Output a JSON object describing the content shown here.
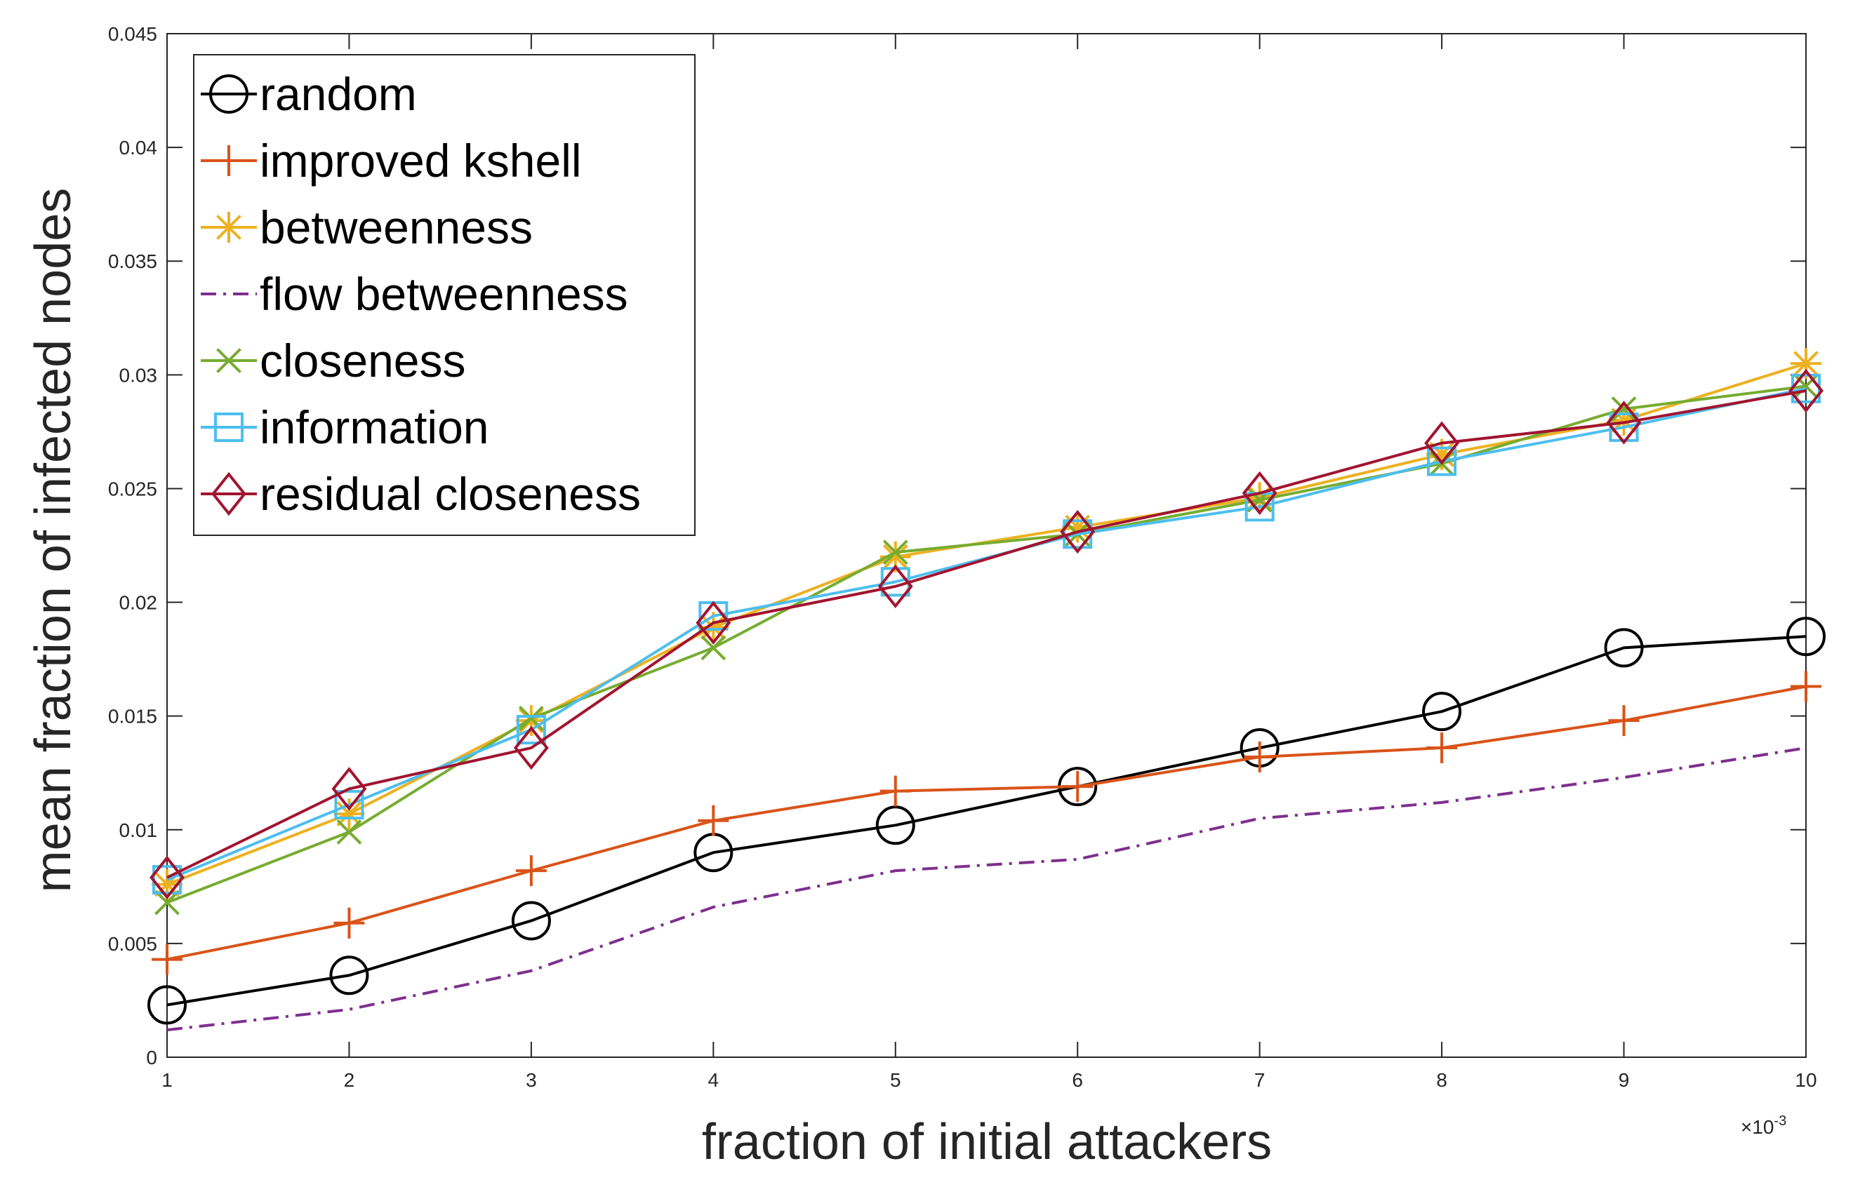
{
  "chart_data": {
    "type": "line",
    "title": "",
    "xlabel": "fraction of initial attackers",
    "ylabel": "mean fraction of infected nodes",
    "x_multiplier_label": "×10",
    "x_multiplier_exp": "-3",
    "x": [
      1,
      2,
      3,
      4,
      5,
      6,
      7,
      8,
      9,
      10
    ],
    "xlim": [
      1,
      10
    ],
    "ylim": [
      0,
      0.045
    ],
    "x_ticks": [
      "1",
      "2",
      "3",
      "4",
      "5",
      "6",
      "7",
      "8",
      "9",
      "10"
    ],
    "y_ticks": [
      "0",
      "0.005",
      "0.01",
      "0.015",
      "0.02",
      "0.025",
      "0.03",
      "0.035",
      "0.04",
      "0.045"
    ],
    "grid": false,
    "legend_position": "top-left",
    "series": [
      {
        "name": "random",
        "color": "#000000",
        "marker": "circle",
        "dash": "solid",
        "values": [
          0.0023,
          0.0036,
          0.006,
          0.009,
          0.0102,
          0.0119,
          0.0136,
          0.0152,
          0.018,
          0.0185
        ]
      },
      {
        "name": "improved kshell",
        "color": "#D95319",
        "marker": "plus",
        "dash": "solid",
        "values": [
          0.0043,
          0.0059,
          0.0082,
          0.0104,
          0.0117,
          0.0119,
          0.0132,
          0.0136,
          0.0148,
          0.0163
        ]
      },
      {
        "name": "betweenness",
        "color": "#EDB120",
        "marker": "asterisk",
        "dash": "solid",
        "values": [
          0.0076,
          0.0107,
          0.0148,
          0.0189,
          0.022,
          0.0233,
          0.0246,
          0.0265,
          0.028,
          0.0305
        ]
      },
      {
        "name": "flow betweenness",
        "color": "#7E2F8E",
        "marker": "none",
        "dash": "dashdot",
        "values": [
          0.0012,
          0.0021,
          0.0038,
          0.0066,
          0.0082,
          0.0087,
          0.0105,
          0.0112,
          0.0123,
          0.0136
        ]
      },
      {
        "name": "closeness",
        "color": "#77AC30",
        "marker": "x",
        "dash": "solid",
        "values": [
          0.0068,
          0.0099,
          0.0149,
          0.018,
          0.0222,
          0.023,
          0.0245,
          0.0261,
          0.0285,
          0.0295
        ]
      },
      {
        "name": "information",
        "color": "#4DBEEE",
        "marker": "square",
        "dash": "solid",
        "values": [
          0.0078,
          0.0111,
          0.0144,
          0.0194,
          0.0209,
          0.023,
          0.0242,
          0.0262,
          0.0277,
          0.0294
        ]
      },
      {
        "name": "residual closeness",
        "color": "#A2142F",
        "marker": "diamond",
        "dash": "solid",
        "values": [
          0.0079,
          0.0118,
          0.0136,
          0.0191,
          0.0207,
          0.0231,
          0.0248,
          0.027,
          0.0279,
          0.0293
        ]
      }
    ]
  }
}
